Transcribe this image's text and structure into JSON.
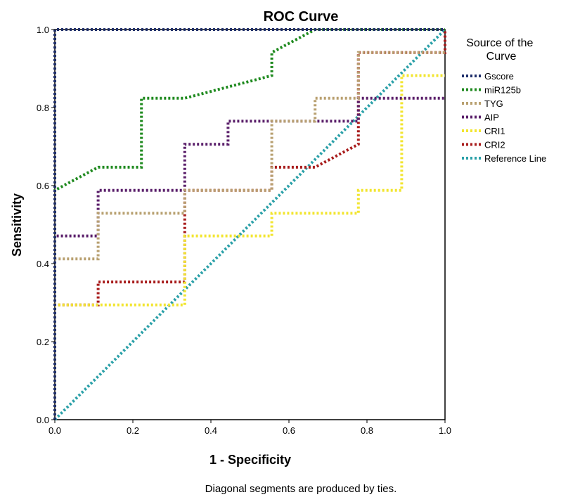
{
  "chart_data": {
    "type": "line",
    "title": "ROC Curve",
    "xlabel": "1 - Specificity",
    "ylabel": "Sensitivity",
    "xlim": [
      0,
      1
    ],
    "ylim": [
      0,
      1
    ],
    "x_ticks": [
      "0.0",
      "0.2",
      "0.4",
      "0.6",
      "0.8",
      "1.0"
    ],
    "y_ticks": [
      "0.0",
      "0.2",
      "0.4",
      "0.6",
      "0.8",
      "1.0"
    ],
    "grid": false,
    "legend_position": "right",
    "legend_title": "Source of the Curve",
    "footnote": "Diagonal segments are produced by ties.",
    "series": [
      {
        "name": "Gscore",
        "color": "#1f2f6b",
        "points": [
          [
            0,
            0
          ],
          [
            0,
            1
          ],
          [
            1,
            1
          ]
        ]
      },
      {
        "name": "miR125b",
        "color": "#1f8a1f",
        "points": [
          [
            0,
            0
          ],
          [
            0,
            0.588
          ],
          [
            0.111,
            0.647
          ],
          [
            0.222,
            0.647
          ],
          [
            0.222,
            0.824
          ],
          [
            0.333,
            0.824
          ],
          [
            0.556,
            0.882
          ],
          [
            0.556,
            0.941
          ],
          [
            0.667,
            1
          ],
          [
            1,
            1
          ]
        ]
      },
      {
        "name": "TYG",
        "color": "#b8a070",
        "points": [
          [
            0,
            0
          ],
          [
            0,
            0.412
          ],
          [
            0.111,
            0.412
          ],
          [
            0.111,
            0.529
          ],
          [
            0.333,
            0.529
          ],
          [
            0.333,
            0.588
          ],
          [
            0.556,
            0.588
          ],
          [
            0.556,
            0.765
          ],
          [
            0.667,
            0.765
          ],
          [
            0.667,
            0.824
          ],
          [
            0.778,
            0.824
          ],
          [
            0.778,
            0.941
          ],
          [
            1,
            0.941
          ]
        ]
      },
      {
        "name": "AIP",
        "color": "#5a1f6a",
        "points": [
          [
            0,
            0
          ],
          [
            0,
            0.471
          ],
          [
            0.111,
            0.471
          ],
          [
            0.111,
            0.588
          ],
          [
            0.333,
            0.588
          ],
          [
            0.333,
            0.706
          ],
          [
            0.444,
            0.706
          ],
          [
            0.444,
            0.765
          ],
          [
            0.778,
            0.765
          ],
          [
            0.778,
            0.824
          ],
          [
            1,
            0.824
          ]
        ]
      },
      {
        "name": "CRI1",
        "color": "#f2e530",
        "points": [
          [
            0,
            0
          ],
          [
            0,
            0.294
          ],
          [
            0.333,
            0.294
          ],
          [
            0.333,
            0.471
          ],
          [
            0.556,
            0.471
          ],
          [
            0.556,
            0.529
          ],
          [
            0.778,
            0.529
          ],
          [
            0.778,
            0.588
          ],
          [
            0.889,
            0.588
          ],
          [
            0.889,
            0.882
          ],
          [
            1,
            0.882
          ]
        ]
      },
      {
        "name": "CRI2",
        "color": "#a81c1c",
        "points": [
          [
            0,
            0
          ],
          [
            0,
            0.294
          ],
          [
            0.111,
            0.294
          ],
          [
            0.111,
            0.353
          ],
          [
            0.333,
            0.353
          ],
          [
            0.333,
            0.588
          ],
          [
            0.556,
            0.588
          ],
          [
            0.556,
            0.647
          ],
          [
            0.667,
            0.647
          ],
          [
            0.778,
            0.706
          ],
          [
            0.778,
            0.941
          ],
          [
            1,
            0.941
          ],
          [
            1,
            1
          ]
        ]
      },
      {
        "name": "Reference Line",
        "color": "#2aa0a8",
        "points": [
          [
            0,
            0
          ],
          [
            1,
            1
          ]
        ]
      }
    ]
  }
}
